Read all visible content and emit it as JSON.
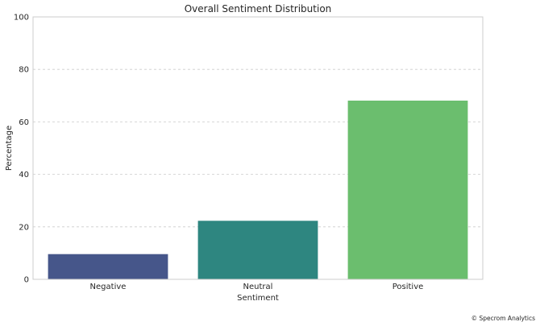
{
  "chart_data": {
    "type": "bar",
    "title": "Overall Sentiment Distribution",
    "xlabel": "Sentiment",
    "ylabel": "Percentage",
    "categories": [
      "Negative",
      "Neutral",
      "Positive"
    ],
    "values": [
      9.6,
      22.3,
      68.1
    ],
    "ylim": [
      0,
      100
    ],
    "yticks": [
      0,
      20,
      40,
      60,
      80,
      100
    ],
    "grid": "y-dashed",
    "colors": [
      "#46568a",
      "#2e8680",
      "#6bbe6e"
    ]
  },
  "footer": {
    "note": "© Specrom Analytics"
  }
}
